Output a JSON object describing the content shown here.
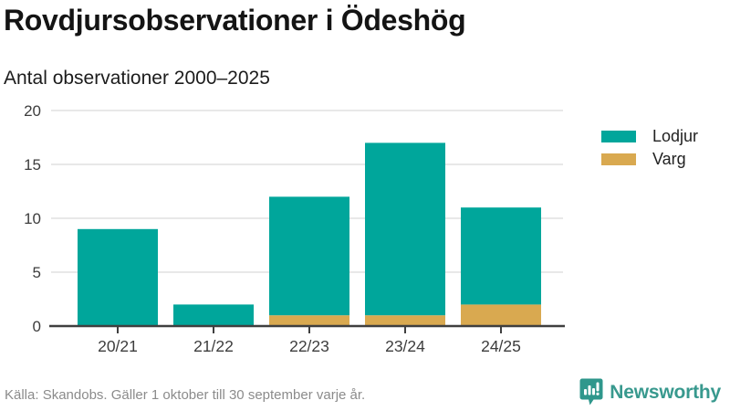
{
  "chart_data": {
    "type": "bar",
    "stacked": true,
    "title": "Rovdjursobservationer i Ödeshög",
    "subtitle": "Antal observationer 2000–2025",
    "categories": [
      "20/21",
      "21/22",
      "22/23",
      "23/24",
      "24/25"
    ],
    "series": [
      {
        "name": "Lodjur",
        "color": "#00a69b",
        "values": [
          9,
          2,
          11,
          16,
          9
        ]
      },
      {
        "name": "Varg",
        "color": "#d9a950",
        "values": [
          0,
          0,
          1,
          1,
          2
        ]
      }
    ],
    "stack_totals": [
      9,
      2,
      12,
      17,
      11
    ],
    "ylim": [
      0,
      20
    ],
    "yticks": [
      0,
      5,
      10,
      15,
      20
    ],
    "grid": true,
    "legend_position": "right"
  },
  "footer": {
    "source": "Källa: Skandobs. Gäller 1 oktober till 30 september varje år.",
    "brand": "Newsworthy"
  },
  "colors": {
    "lodjur": "#00a69b",
    "varg": "#d9a950",
    "axis": "#3f3f3f",
    "gridline": "#e0e0e0",
    "tick_label": "#3d3d3d",
    "brand_teal": "#38998e",
    "source_gray": "#8b8b8b"
  }
}
